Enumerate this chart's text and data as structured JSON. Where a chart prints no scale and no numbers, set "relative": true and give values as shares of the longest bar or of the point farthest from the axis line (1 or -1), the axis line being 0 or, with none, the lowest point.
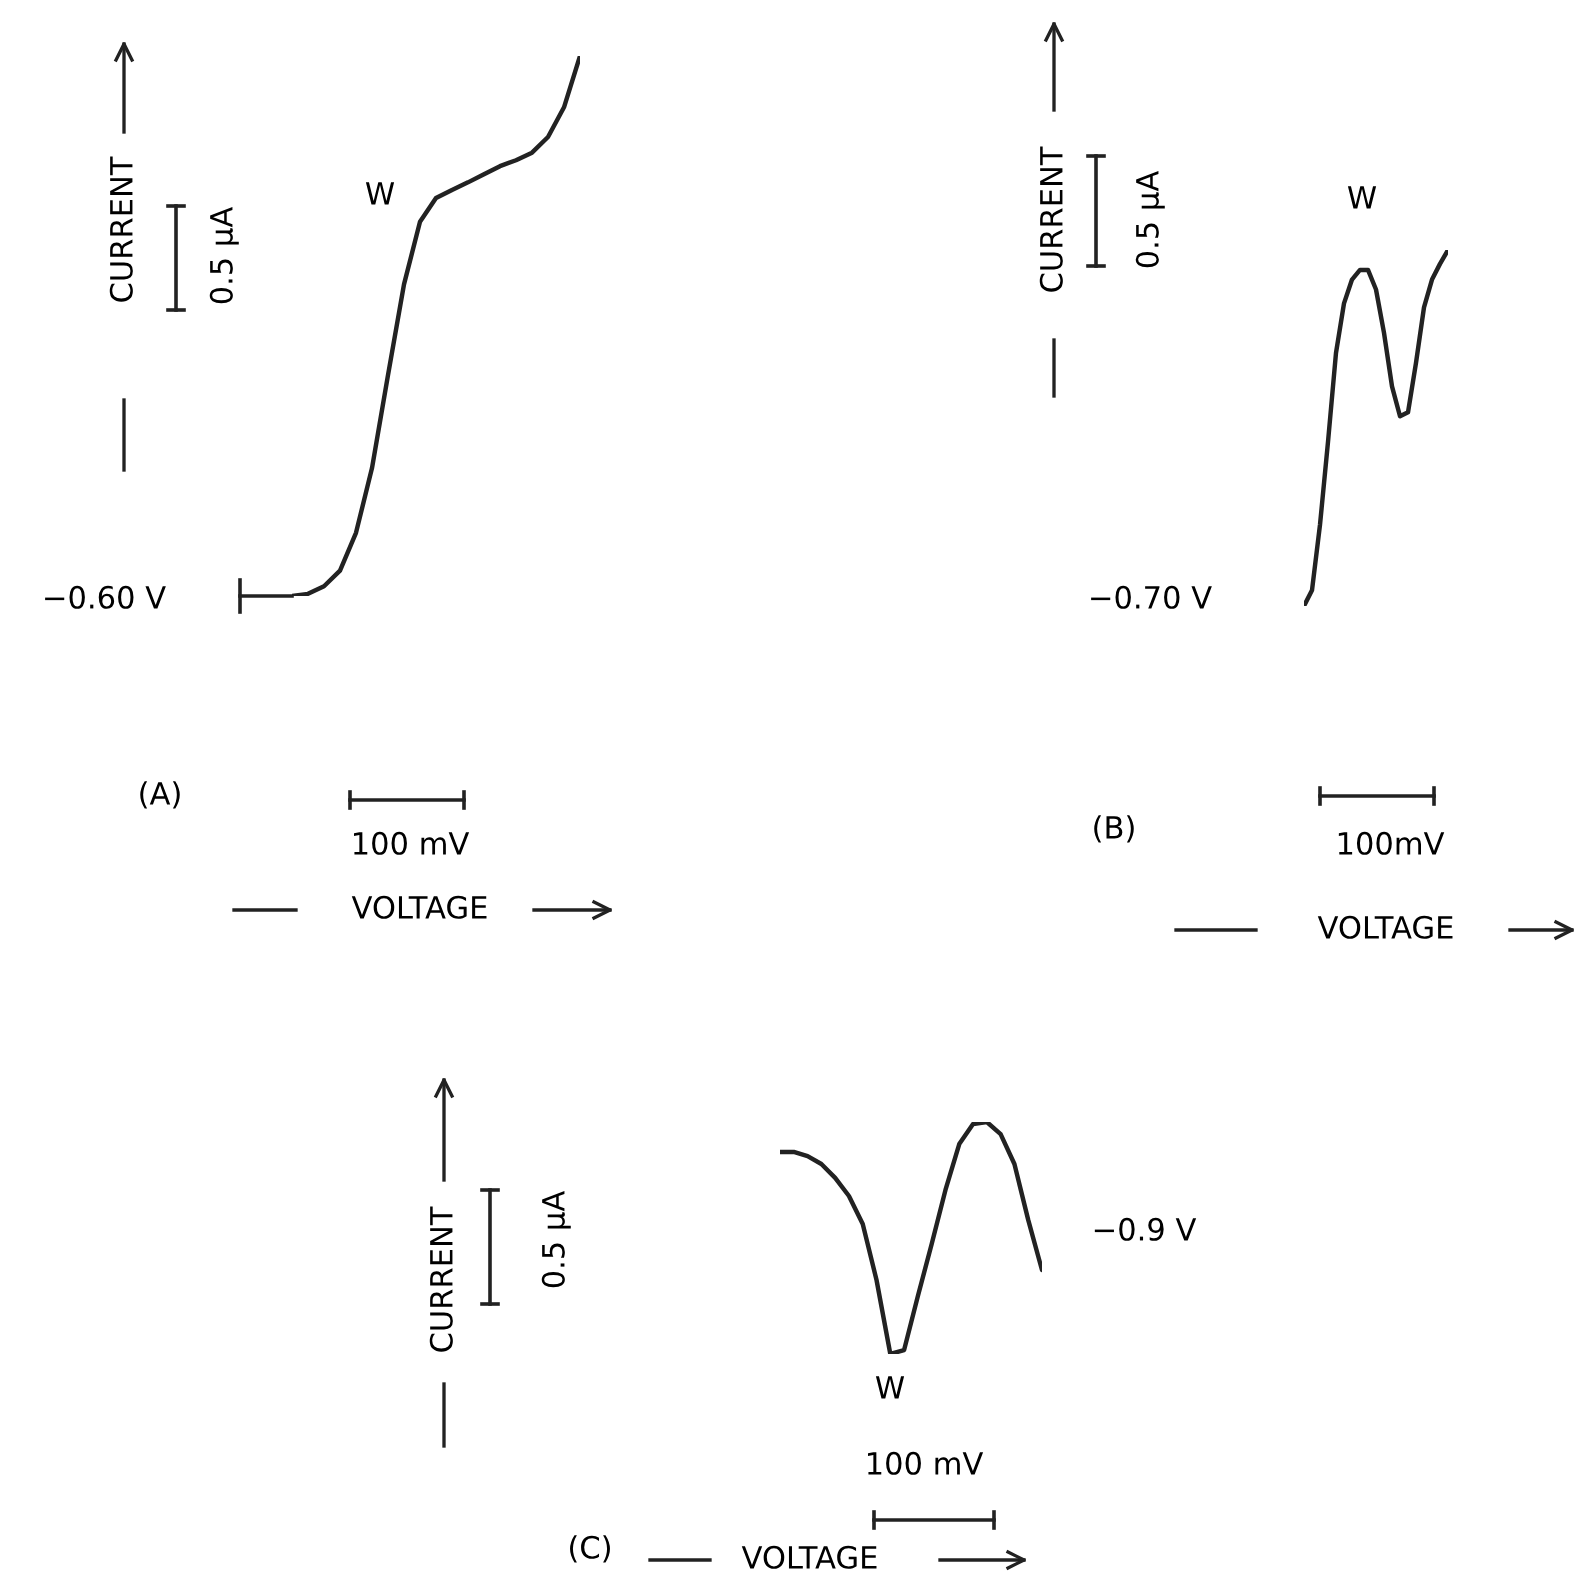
{
  "chart_data": [
    {
      "type": "line",
      "relative": true,
      "title": "(A)",
      "xlabel": "VOLTAGE",
      "ylabel": "CURRENT",
      "color": "#222222",
      "categories": [
        null,
        null,
        null,
        null,
        null,
        null,
        null,
        null,
        null,
        null,
        null,
        null,
        null,
        null,
        null,
        null,
        null,
        null,
        null
      ],
      "values": [
        0,
        0.004,
        0.018,
        0.047,
        0.117,
        0.237,
        0.409,
        0.577,
        0.693,
        0.737,
        0.752,
        0.766,
        0.781,
        0.796,
        0.807,
        0.821,
        0.85,
        0.905,
        1.0
      ],
      "annotations": [
        "W",
        "−0.60 V",
        "0.5 μA",
        "100 mV"
      ]
    },
    {
      "type": "line",
      "relative": true,
      "title": "(B)",
      "xlabel": "VOLTAGE",
      "ylabel": "CURRENT",
      "color": "#222222",
      "categories": [
        null,
        null,
        null,
        null,
        null,
        null,
        null,
        null,
        null,
        null,
        null,
        null,
        null,
        null,
        null,
        null,
        null,
        null,
        null
      ],
      "values": [
        0,
        0.044,
        0.228,
        0.461,
        0.711,
        0.85,
        0.917,
        0.944,
        0.944,
        0.889,
        0.767,
        0.617,
        0.533,
        0.544,
        0.683,
        0.839,
        0.917,
        0.961,
        1.0
      ],
      "annotations": [
        "W",
        "−0.70 V",
        "0.5 μA",
        "100mV"
      ]
    },
    {
      "type": "line",
      "relative": true,
      "title": "(C)",
      "xlabel": "VOLTAGE",
      "ylabel": "CURRENT",
      "color": "#222222",
      "categories": [
        null,
        null,
        null,
        null,
        null,
        null,
        null,
        null,
        null,
        null,
        null,
        null,
        null,
        null,
        null,
        null,
        null,
        null,
        null,
        null
      ],
      "values": [
        0.871,
        0.871,
        0.853,
        0.819,
        0.759,
        0.681,
        0.56,
        0.319,
        0,
        0.017,
        0.25,
        0.474,
        0.707,
        0.905,
        0.991,
        1.0,
        0.948,
        0.819,
        0.578,
        0.362
      ],
      "annotations": [
        "W",
        "−0.9 V",
        "0.5 μA",
        "100 mV"
      ]
    }
  ]
}
